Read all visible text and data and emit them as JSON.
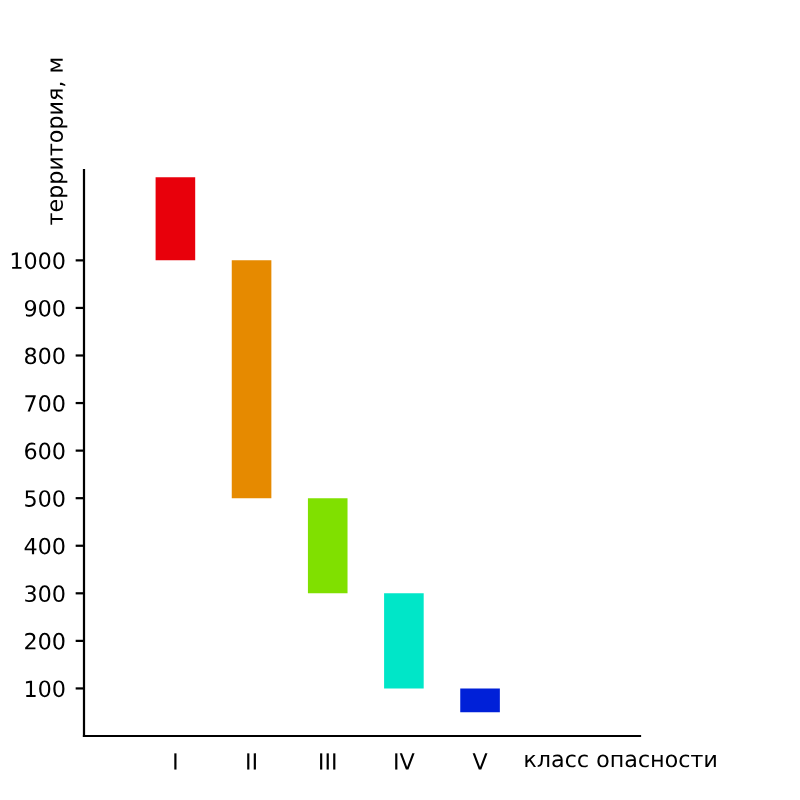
{
  "chart_data": {
    "type": "bar",
    "xlabel": "класс опасности",
    "ylabel": "территория, м",
    "categories": [
      "I",
      "II",
      "III",
      "IV",
      "V"
    ],
    "base": [
      1000,
      500,
      300,
      100,
      50
    ],
    "values": [
      175,
      500,
      200,
      200,
      50
    ],
    "colors": [
      "#e8000b",
      "#e68a00",
      "#80e000",
      "#00e6c8",
      "#0020d8"
    ],
    "ylim": [
      0,
      1190
    ],
    "yticks": [
      100,
      200,
      300,
      400,
      500,
      600,
      700,
      800,
      900,
      1000
    ],
    "grid": false
  }
}
